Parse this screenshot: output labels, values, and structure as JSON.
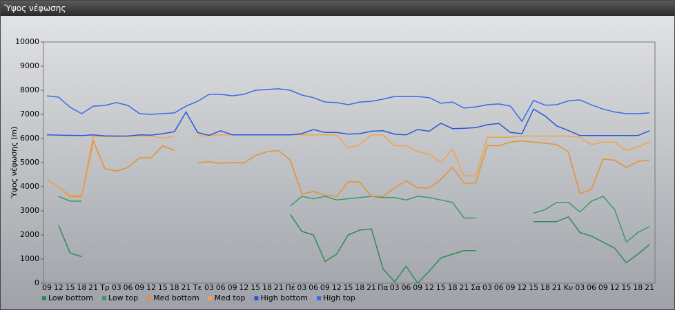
{
  "chart_data": {
    "type": "line",
    "title": "Ύψος νέφωσης",
    "y_label": "Ύψος νέφωσης (m)",
    "categories": [
      "09",
      "12",
      "15",
      "18",
      "21",
      "Τρ",
      "03",
      "06",
      "09",
      "12",
      "15",
      "18",
      "21",
      "Τε",
      "03",
      "06",
      "09",
      "12",
      "15",
      "18",
      "21",
      "Πέ",
      "03",
      "06",
      "09",
      "12",
      "15",
      "18",
      "21",
      "Πα",
      "03",
      "06",
      "09",
      "12",
      "15",
      "18",
      "21",
      "Σά",
      "03",
      "06",
      "09",
      "12",
      "15",
      "18",
      "21",
      "Κυ",
      "03",
      "06",
      "09",
      "12",
      "15",
      "18",
      "21"
    ],
    "ylim": [
      0,
      10000
    ],
    "yticks": [
      0,
      1000,
      2000,
      3000,
      4000,
      5000,
      6000,
      7000,
      8000,
      9000,
      10000
    ],
    "series": [
      {
        "name": "Low bottom",
        "color": "#2e8b57",
        "values": [
          null,
          2400,
          1250,
          1100,
          null,
          null,
          null,
          null,
          null,
          null,
          null,
          null,
          null,
          null,
          null,
          null,
          null,
          null,
          null,
          null,
          null,
          2850,
          2150,
          2000,
          900,
          1200,
          2000,
          2200,
          2250,
          600,
          50,
          700,
          0,
          500,
          1050,
          1200,
          1350,
          1350,
          null,
          null,
          null,
          null,
          2550,
          2550,
          2550,
          2750,
          2100,
          1950,
          1700,
          1450,
          850,
          1200,
          1600
        ]
      },
      {
        "name": "Low top",
        "color": "#3a9a68",
        "values": [
          null,
          3600,
          3400,
          3400,
          null,
          null,
          null,
          null,
          null,
          null,
          null,
          null,
          null,
          null,
          null,
          null,
          null,
          null,
          null,
          null,
          null,
          3200,
          3600,
          3500,
          3600,
          3450,
          3500,
          3550,
          3600,
          3550,
          3550,
          3450,
          3600,
          3550,
          3450,
          3350,
          2700,
          2700,
          null,
          null,
          null,
          null,
          2900,
          3050,
          3350,
          3350,
          2950,
          3400,
          3600,
          3050,
          1700,
          2100,
          2350
        ]
      },
      {
        "name": "Med bottom",
        "color": "#e8902c",
        "values": [
          4270,
          4000,
          3580,
          3600,
          5900,
          4750,
          4650,
          4800,
          5200,
          5200,
          5700,
          5500,
          null,
          5000,
          5030,
          4970,
          5000,
          4980,
          5300,
          5450,
          5500,
          5100,
          3700,
          3800,
          3650,
          3600,
          4200,
          4200,
          3600,
          3600,
          3950,
          4250,
          3950,
          3950,
          4300,
          4800,
          4150,
          4150,
          5700,
          5700,
          5850,
          5900,
          5850,
          5800,
          5750,
          5450,
          3700,
          3900,
          5150,
          5100,
          4800,
          5050,
          5100
        ]
      },
      {
        "name": "Med top",
        "color": "#f0a348",
        "values": [
          4270,
          4000,
          3620,
          3640,
          6100,
          6080,
          6080,
          6100,
          6100,
          6100,
          6000,
          6100,
          null,
          6100,
          6120,
          6150,
          6150,
          6150,
          6150,
          6150,
          6150,
          6150,
          6150,
          6150,
          6150,
          6150,
          5600,
          5750,
          6150,
          6150,
          5700,
          5700,
          5450,
          5350,
          5000,
          5550,
          4450,
          4450,
          6050,
          6050,
          6050,
          6100,
          6100,
          6100,
          6100,
          6100,
          6050,
          5750,
          5850,
          5850,
          5500,
          5650,
          5850
        ]
      },
      {
        "name": "High bottom",
        "color": "#2a56d8",
        "values": [
          6150,
          6140,
          6130,
          6120,
          6150,
          6110,
          6100,
          6100,
          6150,
          6140,
          6200,
          6280,
          7100,
          6250,
          6130,
          6320,
          6150,
          6150,
          6150,
          6150,
          6150,
          6150,
          6200,
          6370,
          6250,
          6250,
          6180,
          6200,
          6300,
          6320,
          6180,
          6150,
          6370,
          6300,
          6630,
          6410,
          6420,
          6450,
          6570,
          6620,
          6250,
          6200,
          7220,
          6930,
          6520,
          6330,
          6120,
          6120,
          6120,
          6120,
          6120,
          6120,
          6320
        ]
      },
      {
        "name": "High top",
        "color": "#3a6ae8",
        "values": [
          7770,
          7710,
          7290,
          7030,
          7340,
          7370,
          7490,
          7370,
          7030,
          7000,
          7030,
          7060,
          7340,
          7540,
          7830,
          7830,
          7770,
          7830,
          8000,
          8030,
          8060,
          8000,
          7800,
          7690,
          7510,
          7490,
          7400,
          7510,
          7540,
          7630,
          7740,
          7740,
          7740,
          7690,
          7460,
          7510,
          7260,
          7310,
          7400,
          7430,
          7340,
          6710,
          7580,
          7380,
          7400,
          7560,
          7600,
          7390,
          7220,
          7100,
          7030,
          7030,
          7060
        ]
      }
    ]
  }
}
